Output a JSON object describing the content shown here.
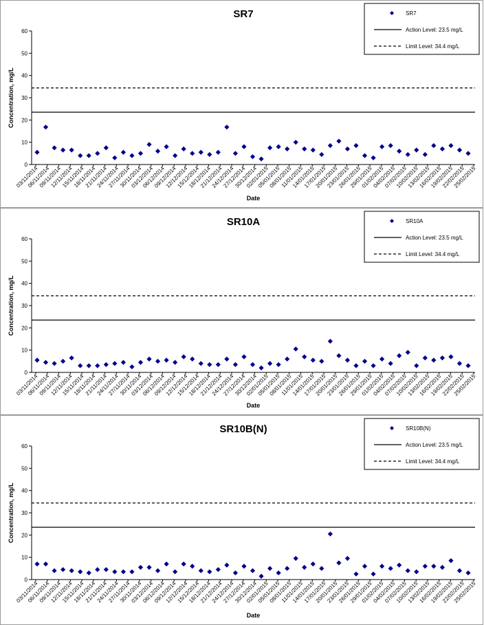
{
  "chart_data": [
    {
      "type": "scatter",
      "title": "SR7",
      "xlabel": "Date",
      "ylabel": "Concentration, mg/L",
      "ylim": [
        0,
        60
      ],
      "yticks": [
        0,
        10,
        20,
        30,
        40,
        50,
        60
      ],
      "grid": false,
      "legend_position": "top-right",
      "x_tick_labels": [
        "03/11/2014",
        "06/11/2014",
        "09/11/2014",
        "12/11/2014",
        "15/11/2014",
        "18/11/2014",
        "21/11/2014",
        "24/11/2014",
        "27/11/2014",
        "30/11/2014",
        "03/12/2014",
        "06/12/2014",
        "09/12/2014",
        "12/12/2014",
        "15/12/2014",
        "18/12/2014",
        "21/12/2014",
        "24/12/2014",
        "27/12/2014",
        "30/12/2014",
        "02/01/2015",
        "05/01/2015",
        "08/01/2015",
        "11/01/2015",
        "14/01/2015",
        "17/01/2015",
        "20/01/2015",
        "23/01/2015",
        "26/01/2015",
        "29/01/2015",
        "01/02/2015",
        "04/02/2015",
        "07/02/2015",
        "10/02/2015",
        "13/02/2015",
        "16/02/2015",
        "19/02/2015",
        "22/02/2015",
        "25/02/2015"
      ],
      "series": [
        {
          "name": "SR7",
          "kind": "points",
          "color": "#00008B",
          "values": [
            5.5,
            16.8,
            7.5,
            6.5,
            6.5,
            4,
            4,
            5,
            7.5,
            3,
            5.5,
            4,
            5,
            9,
            6,
            8,
            4,
            7,
            5,
            5.5,
            4.5,
            5.5,
            16.8,
            5,
            8,
            3.5,
            2.5,
            7.5,
            8,
            7,
            10,
            7,
            6.5,
            4.5,
            8.5,
            10.5,
            7,
            8.5,
            4,
            3,
            8,
            8.5,
            6,
            4.5,
            6.5,
            4.5,
            8.5,
            7,
            8.5,
            6.5,
            5
          ]
        },
        {
          "name": "Action Level: 23.5 mg/L",
          "kind": "line",
          "y": 23.5,
          "color": "#000000"
        },
        {
          "name": "Limit Level: 34.4 mg/L",
          "kind": "dashed",
          "y": 34.4,
          "color": "#000000"
        }
      ]
    },
    {
      "type": "scatter",
      "title": "SR10A",
      "xlabel": "Date",
      "ylabel": "Concentration, mg/L",
      "ylim": [
        0,
        60
      ],
      "yticks": [
        0,
        10,
        20,
        30,
        40,
        50,
        60
      ],
      "grid": false,
      "legend_position": "top-right",
      "x_tick_labels": [
        "03/11/2014",
        "06/11/2014",
        "09/11/2014",
        "12/11/2014",
        "15/11/2014",
        "18/11/2014",
        "21/11/2014",
        "24/11/2014",
        "27/11/2014",
        "30/11/2014",
        "03/12/2014",
        "06/12/2014",
        "09/12/2014",
        "12/12/2014",
        "15/12/2014",
        "18/12/2014",
        "21/12/2014",
        "24/12/2014",
        "27/12/2014",
        "30/12/2014",
        "02/01/2015",
        "05/01/2015",
        "08/01/2015",
        "11/01/2015",
        "14/01/2015",
        "17/01/2015",
        "20/01/2015",
        "23/01/2015",
        "26/01/2015",
        "29/01/2015",
        "01/02/2015",
        "04/02/2015",
        "07/02/2015",
        "10/02/2015",
        "13/02/2015",
        "16/02/2015",
        "19/02/2015",
        "22/02/2015",
        "25/02/2015"
      ],
      "series": [
        {
          "name": "SR10A",
          "kind": "points",
          "color": "#00008B",
          "values": [
            5.5,
            4.5,
            4,
            5,
            6.5,
            3,
            3,
            3,
            3.5,
            4,
            4.5,
            2.5,
            4.5,
            6,
            5,
            5.5,
            4.5,
            7,
            6,
            4,
            3.5,
            3.5,
            6,
            3.5,
            7,
            3.5,
            2,
            4,
            3.5,
            6,
            10.5,
            7,
            5.5,
            5,
            14,
            7.5,
            5.5,
            3,
            5,
            3,
            6,
            4,
            7.5,
            9,
            3,
            6.5,
            5.5,
            6.5,
            7,
            4,
            3
          ]
        },
        {
          "name": "Action Level: 23.5 mg/L",
          "kind": "line",
          "y": 23.5,
          "color": "#000000"
        },
        {
          "name": "Limit Level: 34.4 mg/L",
          "kind": "dashed",
          "y": 34.4,
          "color": "#000000"
        }
      ]
    },
    {
      "type": "scatter",
      "title": "SR10B(N)",
      "xlabel": "Date",
      "ylabel": "Concentration, mg/L",
      "ylim": [
        0,
        60
      ],
      "yticks": [
        0,
        10,
        20,
        30,
        40,
        50,
        60
      ],
      "grid": false,
      "legend_position": "top-right",
      "x_tick_labels": [
        "03/11/2014",
        "06/11/2014",
        "09/11/2014",
        "12/11/2014",
        "15/11/2014",
        "18/11/2014",
        "21/11/2014",
        "24/11/2014",
        "27/11/2014",
        "30/11/2014",
        "03/12/2014",
        "06/12/2014",
        "09/12/2014",
        "12/12/2014",
        "15/12/2014",
        "18/12/2014",
        "21/12/2014",
        "24/12/2014",
        "27/12/2014",
        "30/12/2014",
        "02/01/2015",
        "05/01/2015",
        "08/01/2015",
        "11/01/2015",
        "14/01/2015",
        "17/01/2015",
        "20/01/2015",
        "23/01/2015",
        "26/01/2015",
        "29/01/2015",
        "01/02/2015",
        "04/02/2015",
        "07/02/2015",
        "10/02/2015",
        "13/02/2015",
        "16/02/2015",
        "19/02/2015",
        "22/02/2015",
        "25/02/2015"
      ],
      "series": [
        {
          "name": "SR10B(N)",
          "kind": "points",
          "color": "#00008B",
          "values": [
            7,
            7,
            4,
            4.5,
            4,
            3.5,
            3,
            4.5,
            4.5,
            3.5,
            3.5,
            3.5,
            5.5,
            5.5,
            4,
            7,
            3.5,
            7,
            6,
            4,
            3.5,
            4.5,
            6.5,
            3,
            6,
            4,
            1.5,
            5,
            3,
            5,
            9.5,
            5.5,
            7,
            5,
            20.5,
            7.5,
            9.5,
            2.5,
            6,
            2.5,
            6,
            5,
            6.5,
            4,
            3.5,
            6,
            6,
            5.5,
            8.5,
            4,
            3
          ]
        },
        {
          "name": "Action Level: 23.5 mg/L",
          "kind": "line",
          "y": 23.5,
          "color": "#000000"
        },
        {
          "name": "Limit Level: 34.4 mg/L",
          "kind": "dashed",
          "y": 34.4,
          "color": "#000000"
        }
      ]
    }
  ]
}
